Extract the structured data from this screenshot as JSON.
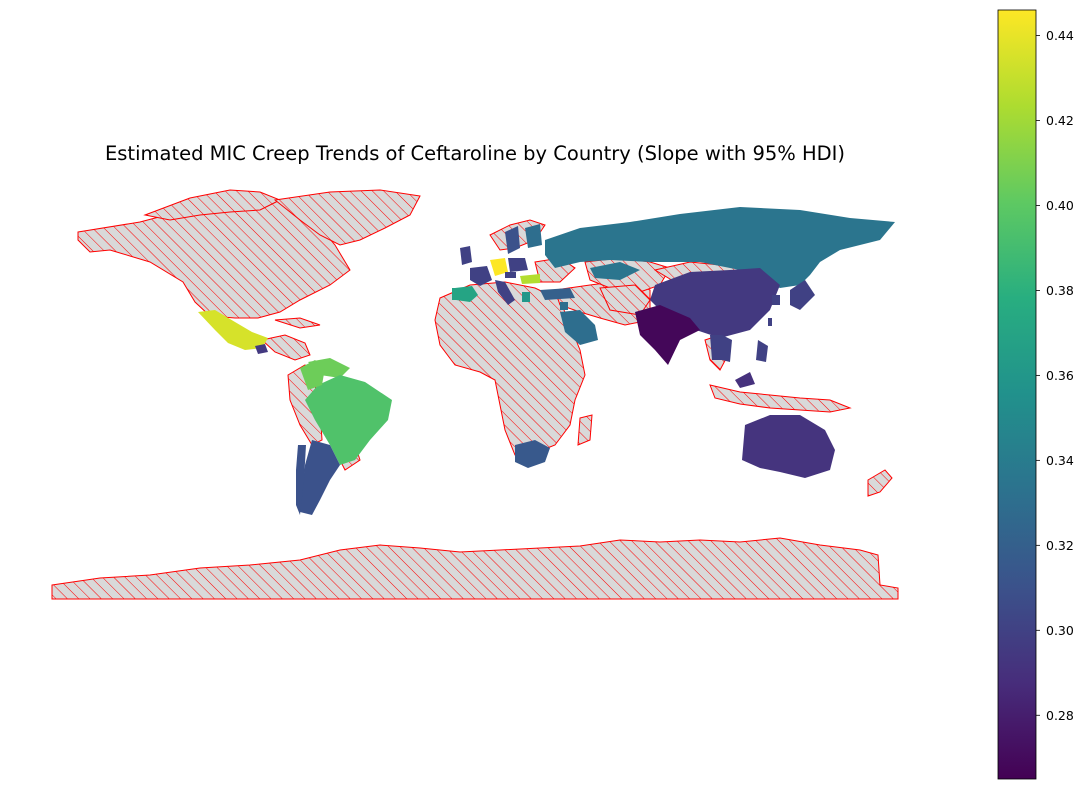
{
  "title": "Estimated MIC Creep Trends of Ceftaroline by Country (Slope with 95% HDI)",
  "colorbar": {
    "colormap": "viridis",
    "min": 0.265,
    "max": 0.446,
    "ticks": [
      "0.28",
      "0.30",
      "0.32",
      "0.34",
      "0.36",
      "0.38",
      "0.40",
      "0.42",
      "0.44"
    ],
    "tick_values": [
      0.28,
      0.3,
      0.32,
      0.34,
      0.36,
      0.38,
      0.4,
      0.42,
      0.44
    ]
  },
  "no_data_style": {
    "fill": "#d9d9d9",
    "edge": "#ff0000",
    "hatch": "diagonal"
  },
  "chart_data": {
    "type": "choropleth",
    "title": "Estimated MIC Creep Trends of Ceftaroline by Country (Slope with 95% HDI)",
    "value_name": "slope",
    "countries": [
      {
        "name": "Mexico",
        "value": 0.435
      },
      {
        "name": "Guatemala",
        "value": 0.295
      },
      {
        "name": "Venezuela",
        "value": 0.405
      },
      {
        "name": "Brazil",
        "value": 0.395
      },
      {
        "name": "Argentina",
        "value": 0.31
      },
      {
        "name": "Chile",
        "value": 0.31
      },
      {
        "name": "Colombia",
        "value": 0.405
      },
      {
        "name": "Russia",
        "value": 0.335
      },
      {
        "name": "China",
        "value": 0.295
      },
      {
        "name": "India",
        "value": 0.268
      },
      {
        "name": "Australia",
        "value": 0.292
      },
      {
        "name": "South Africa",
        "value": 0.315
      },
      {
        "name": "Saudi Arabia",
        "value": 0.33
      },
      {
        "name": "Spain",
        "value": 0.37
      },
      {
        "name": "Portugal",
        "value": 0.37
      },
      {
        "name": "France",
        "value": 0.3
      },
      {
        "name": "Germany",
        "value": 0.446
      },
      {
        "name": "Hungary",
        "value": 0.425
      },
      {
        "name": "Poland",
        "value": 0.3
      },
      {
        "name": "Czechia",
        "value": 0.3
      },
      {
        "name": "Italy",
        "value": 0.3
      },
      {
        "name": "United Kingdom",
        "value": 0.3
      },
      {
        "name": "Sweden",
        "value": 0.31
      },
      {
        "name": "Finland",
        "value": 0.33
      },
      {
        "name": "Turkey",
        "value": 0.32
      },
      {
        "name": "Greece",
        "value": 0.36
      },
      {
        "name": "Japan",
        "value": 0.3
      },
      {
        "name": "South Korea",
        "value": 0.3
      },
      {
        "name": "Thailand",
        "value": 0.3
      },
      {
        "name": "Vietnam",
        "value": 0.3
      },
      {
        "name": "Philippines",
        "value": 0.3
      },
      {
        "name": "Malaysia",
        "value": 0.29
      },
      {
        "name": "Taiwan",
        "value": 0.3
      },
      {
        "name": "Kazakhstan",
        "value": 0.335
      },
      {
        "name": "Jordan",
        "value": 0.33
      }
    ]
  }
}
